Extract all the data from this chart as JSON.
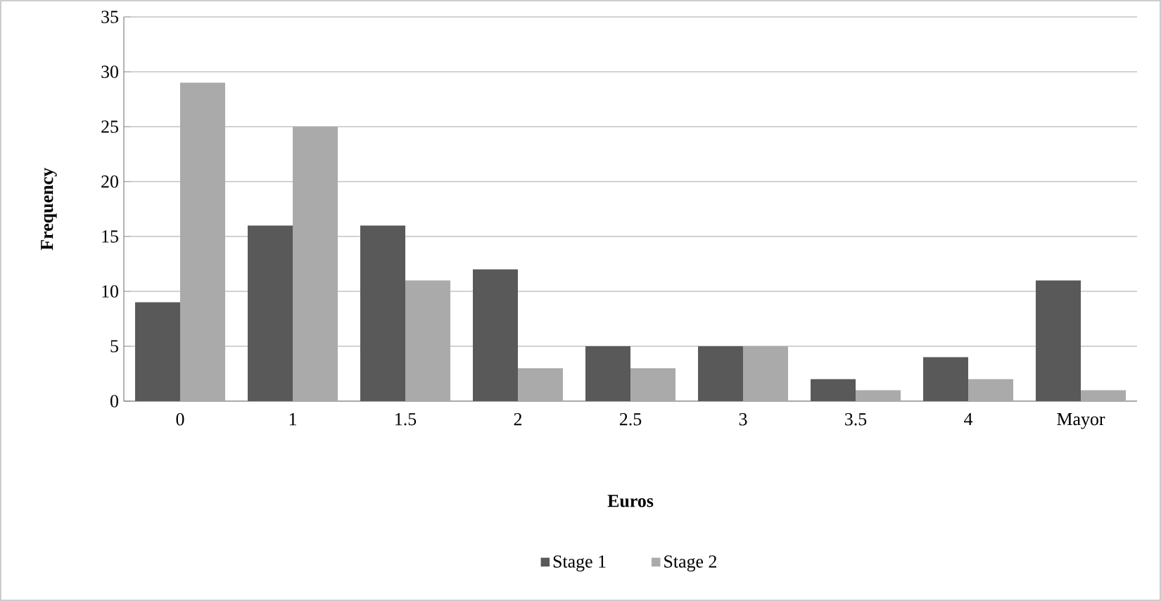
{
  "chart_data": {
    "type": "bar",
    "xlabel": "Euros",
    "ylabel": "Frequency",
    "categories": [
      "0",
      "1",
      "1.5",
      "2",
      "2.5",
      "3",
      "3.5",
      "4",
      "Mayor"
    ],
    "series": [
      {
        "name": "Stage 1",
        "color": "#595959",
        "values": [
          9,
          16,
          16,
          12,
          5,
          5,
          2,
          4,
          11
        ]
      },
      {
        "name": "Stage 2",
        "color": "#aaaaaa",
        "values": [
          29,
          25,
          11,
          3,
          3,
          5,
          1,
          2,
          1
        ]
      }
    ],
    "ylim": [
      0,
      35
    ],
    "yticks": [
      0,
      5,
      10,
      15,
      20,
      25,
      30,
      35
    ],
    "grid": "y",
    "legend": "bottom"
  }
}
